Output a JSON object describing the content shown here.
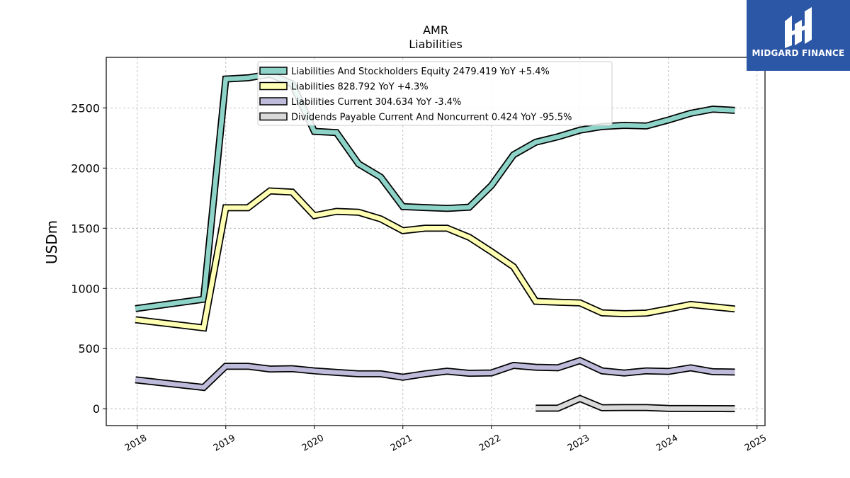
{
  "brand": {
    "name": "MIDGARD FINANCE",
    "color": "#2c56a6"
  },
  "chart_data": {
    "type": "line",
    "title": "AMR",
    "subtitle": "Liabilities",
    "xlabel": "",
    "ylabel": "USDm",
    "ylim": [
      -140,
      2920
    ],
    "xlim": [
      2017.65,
      2025.09
    ],
    "yticks": [
      0,
      500,
      1000,
      1500,
      2000,
      2500
    ],
    "xticks": [
      "2018",
      "2019",
      "2020",
      "2021",
      "2022",
      "2023",
      "2024",
      "2025"
    ],
    "grid": true,
    "legend_position": "top-center",
    "series": [
      {
        "name": "Liabilities And Stockholders Equity  2479.419 YoY +5.4%",
        "color": "#8dd3c7",
        "x": [
          2017.98,
          2018.75,
          2019.0,
          2019.25,
          2019.5,
          2019.75,
          2020.0,
          2020.25,
          2020.5,
          2020.75,
          2021.0,
          2021.25,
          2021.5,
          2021.75,
          2022.0,
          2022.25,
          2022.5,
          2022.75,
          2023.0,
          2023.25,
          2023.5,
          2023.75,
          2024.0,
          2024.25,
          2024.5,
          2024.75
        ],
        "y": [
          832,
          910,
          2740,
          2750,
          2780,
          2700,
          2305,
          2295,
          2035,
          1925,
          1680,
          1672,
          1665,
          1675,
          1855,
          2110,
          2215,
          2260,
          2315,
          2345,
          2355,
          2350,
          2400,
          2455,
          2490,
          2479
        ]
      },
      {
        "name": "Liabilities  828.792 YoY +4.3%",
        "color": "#ffffb3",
        "x": [
          2017.98,
          2018.75,
          2019.0,
          2019.25,
          2019.5,
          2019.75,
          2020.0,
          2020.25,
          2020.5,
          2020.75,
          2021.0,
          2021.25,
          2021.5,
          2021.75,
          2022.0,
          2022.25,
          2022.5,
          2022.75,
          2023.0,
          2023.25,
          2023.5,
          2023.75,
          2024.0,
          2024.25,
          2024.5,
          2024.75
        ],
        "y": [
          740,
          672,
          1670,
          1670,
          1810,
          1800,
          1605,
          1640,
          1633,
          1578,
          1480,
          1500,
          1500,
          1425,
          1305,
          1180,
          893,
          885,
          880,
          797,
          790,
          795,
          830,
          867,
          848,
          829
        ]
      },
      {
        "name": "Liabilities Current  304.634 YoY -3.4%",
        "color": "#bebada",
        "x": [
          2017.98,
          2018.75,
          2019.0,
          2019.25,
          2019.5,
          2019.75,
          2020.0,
          2020.25,
          2020.5,
          2020.75,
          2021.0,
          2021.25,
          2021.5,
          2021.75,
          2022.0,
          2022.25,
          2022.5,
          2022.75,
          2023.0,
          2023.25,
          2023.5,
          2023.75,
          2024.0,
          2024.25,
          2024.5,
          2024.75
        ],
        "y": [
          240,
          177,
          353,
          353,
          330,
          333,
          315,
          302,
          290,
          290,
          262,
          290,
          312,
          295,
          298,
          360,
          345,
          340,
          400,
          315,
          297,
          315,
          310,
          340,
          308,
          305
        ]
      },
      {
        "name": "Dividends Payable Current And Noncurrent  0.424 YoY -95.5%",
        "color": "#d9d9d9",
        "x": [
          2022.5,
          2022.75,
          2023.0,
          2023.25,
          2023.5,
          2023.75,
          2024.0,
          2024.25,
          2024.5,
          2024.75
        ],
        "y": [
          5,
          5,
          85,
          8,
          10,
          10,
          3,
          2,
          1,
          0.4
        ]
      }
    ]
  }
}
